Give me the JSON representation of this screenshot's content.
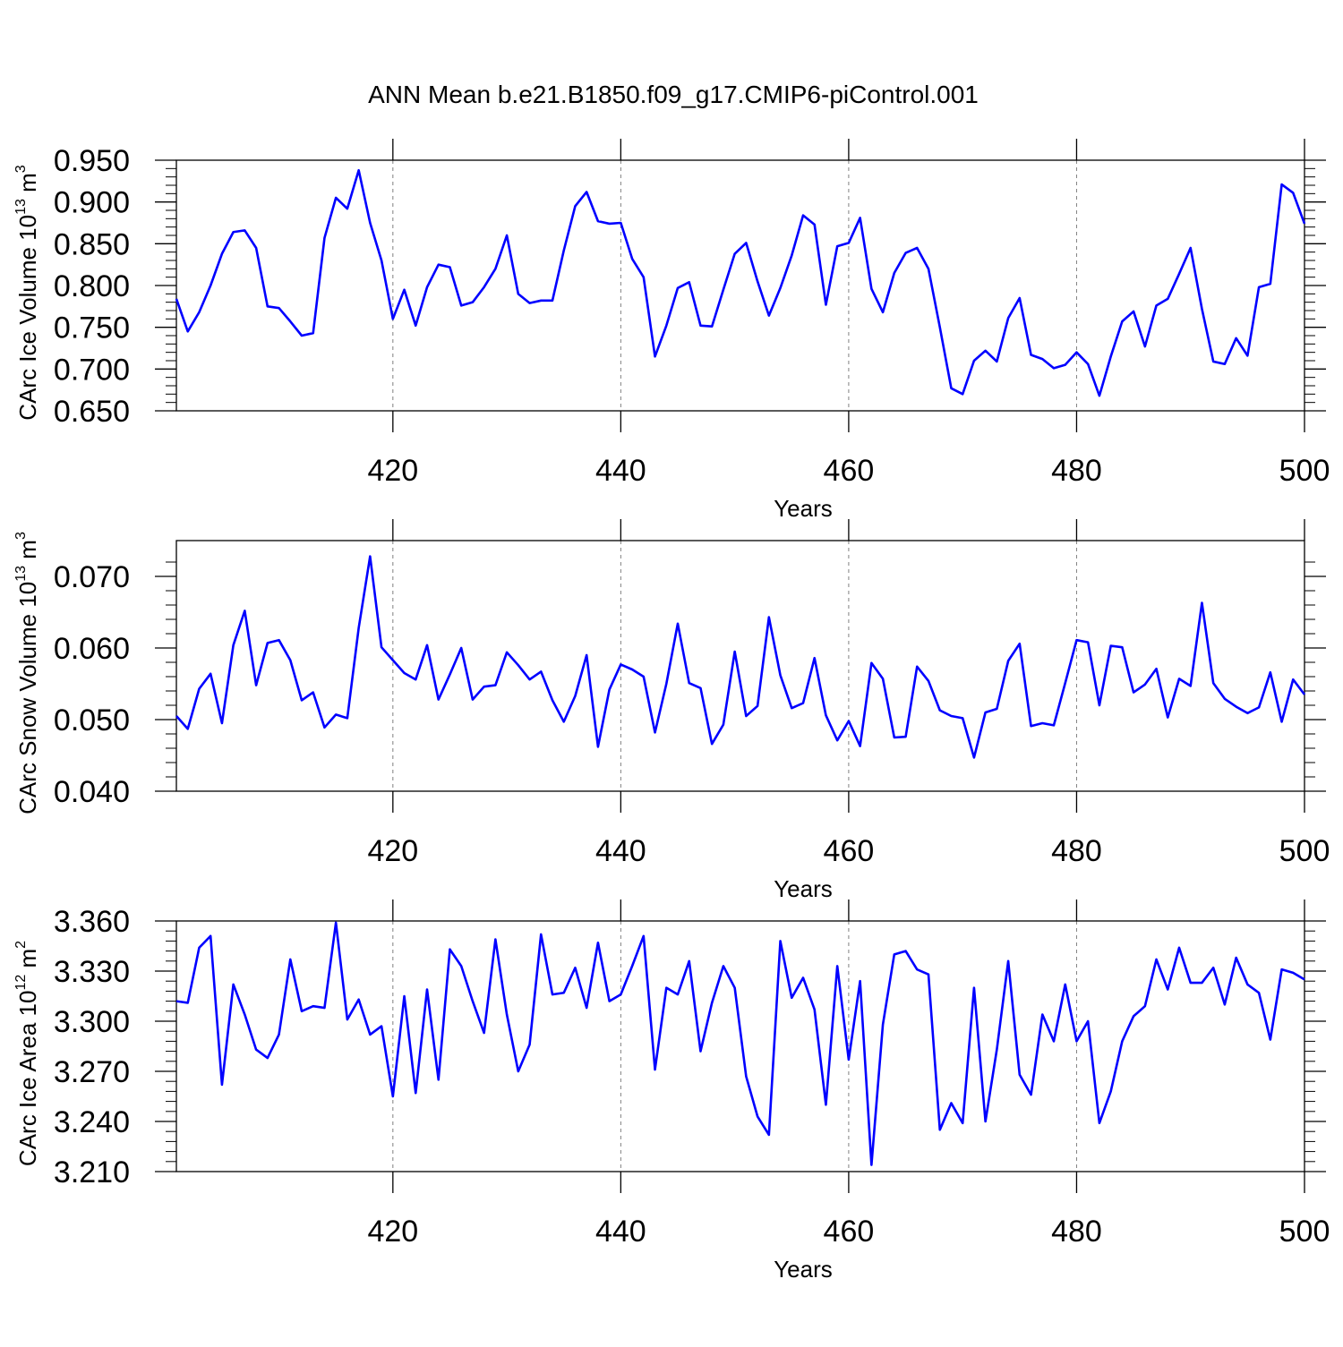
{
  "figure_title": "ANN Mean b.e21.B1850.f09_g17.CMIP6-piControl.001",
  "colors": {
    "line": "#0000ff",
    "axes": "#000000",
    "grid": "#808080"
  },
  "chart_data": [
    {
      "type": "line",
      "xlabel": "Years",
      "ylabel": {
        "main": "CArc Ice Volume 10",
        "exp": "13",
        "unit": " m",
        "unit_exp": "3"
      },
      "xlim": [
        401,
        500
      ],
      "ylim": [
        0.65,
        0.95
      ],
      "xticks": [
        420,
        440,
        460,
        480,
        500
      ],
      "yticks": [
        0.65,
        0.7,
        0.75,
        0.8,
        0.85,
        0.9,
        0.95
      ],
      "ytick_labels": [
        "0.650",
        "0.700",
        "0.750",
        "0.800",
        "0.850",
        "0.900",
        "0.950"
      ],
      "y_minor_step": 0.01,
      "grid": "x-dashed",
      "x_start": 401,
      "values": [
        0.784,
        0.745,
        0.768,
        0.8,
        0.838,
        0.864,
        0.866,
        0.845,
        0.775,
        0.773,
        0.757,
        0.74,
        0.743,
        0.857,
        0.905,
        0.892,
        0.938,
        0.875,
        0.83,
        0.76,
        0.795,
        0.752,
        0.798,
        0.825,
        0.822,
        0.776,
        0.78,
        0.798,
        0.82,
        0.86,
        0.79,
        0.779,
        0.782,
        0.782,
        0.842,
        0.895,
        0.912,
        0.877,
        0.874,
        0.875,
        0.832,
        0.81,
        0.715,
        0.752,
        0.797,
        0.804,
        0.752,
        0.751,
        0.795,
        0.838,
        0.851,
        0.805,
        0.764,
        0.797,
        0.836,
        0.884,
        0.873,
        0.777,
        0.847,
        0.851,
        0.881,
        0.796,
        0.768,
        0.815,
        0.839,
        0.845,
        0.82,
        0.75,
        0.677,
        0.67,
        0.71,
        0.722,
        0.709,
        0.761,
        0.785,
        0.717,
        0.712,
        0.701,
        0.705,
        0.72,
        0.706,
        0.668,
        0.715,
        0.757,
        0.769,
        0.727,
        0.776,
        0.784,
        0.814,
        0.845,
        0.772,
        0.709,
        0.706,
        0.737,
        0.716,
        0.798,
        0.802,
        0.921,
        0.911,
        0.874
      ]
    },
    {
      "type": "line",
      "xlabel": "Years",
      "ylabel": {
        "main": "CArc Snow Volume 10",
        "exp": "13",
        "unit": " m",
        "unit_exp": "3"
      },
      "xlim": [
        401,
        500
      ],
      "ylim": [
        0.04,
        0.075
      ],
      "xticks": [
        420,
        440,
        460,
        480,
        500
      ],
      "yticks": [
        0.04,
        0.05,
        0.06,
        0.07
      ],
      "ytick_labels": [
        "0.040",
        "0.050",
        "0.060",
        "0.070"
      ],
      "y_minor_step": 0.002,
      "grid": "x-dashed",
      "x_start": 401,
      "values": [
        0.0505,
        0.0487,
        0.0543,
        0.0564,
        0.0495,
        0.0604,
        0.0652,
        0.0548,
        0.0607,
        0.0611,
        0.0583,
        0.0527,
        0.0538,
        0.0489,
        0.0507,
        0.0502,
        0.0628,
        0.0728,
        0.0601,
        0.0583,
        0.0565,
        0.0556,
        0.0604,
        0.0528,
        0.0563,
        0.06,
        0.0528,
        0.0546,
        0.0548,
        0.0594,
        0.0576,
        0.0556,
        0.0567,
        0.0527,
        0.0497,
        0.0533,
        0.059,
        0.0462,
        0.0542,
        0.0577,
        0.057,
        0.056,
        0.0482,
        0.055,
        0.0634,
        0.0551,
        0.0544,
        0.0466,
        0.0493,
        0.0595,
        0.0505,
        0.0519,
        0.0643,
        0.0562,
        0.0516,
        0.0523,
        0.0586,
        0.0506,
        0.0471,
        0.0498,
        0.0463,
        0.0579,
        0.0557,
        0.0475,
        0.0476,
        0.0574,
        0.0554,
        0.0513,
        0.0505,
        0.0502,
        0.0447,
        0.051,
        0.0515,
        0.0582,
        0.0606,
        0.0491,
        0.0495,
        0.0492,
        0.0551,
        0.0611,
        0.0608,
        0.052,
        0.0603,
        0.0601,
        0.0538,
        0.0549,
        0.0571,
        0.0503,
        0.0557,
        0.0547,
        0.0663,
        0.0551,
        0.0529,
        0.0518,
        0.0509,
        0.0517,
        0.0566,
        0.0497,
        0.0556,
        0.0535
      ]
    },
    {
      "type": "line",
      "xlabel": "Years",
      "ylabel": {
        "main": "CArc Ice Area 10",
        "exp": "12",
        "unit": " m",
        "unit_exp": "2"
      },
      "xlim": [
        401,
        500
      ],
      "ylim": [
        3.21,
        3.36
      ],
      "xticks": [
        420,
        440,
        460,
        480,
        500
      ],
      "yticks": [
        3.21,
        3.24,
        3.27,
        3.3,
        3.33,
        3.36
      ],
      "ytick_labels": [
        "3.210",
        "3.240",
        "3.270",
        "3.300",
        "3.330",
        "3.360"
      ],
      "y_minor_step": 0.006,
      "grid": "x-dashed",
      "x_start": 401,
      "values": [
        3.312,
        3.311,
        3.344,
        3.351,
        3.262,
        3.322,
        3.304,
        3.283,
        3.278,
        3.292,
        3.337,
        3.306,
        3.309,
        3.308,
        3.359,
        3.301,
        3.313,
        3.292,
        3.297,
        3.255,
        3.315,
        3.257,
        3.319,
        3.265,
        3.343,
        3.333,
        3.312,
        3.293,
        3.349,
        3.304,
        3.27,
        3.286,
        3.352,
        3.316,
        3.317,
        3.332,
        3.308,
        3.347,
        3.312,
        3.316,
        3.333,
        3.351,
        3.271,
        3.32,
        3.316,
        3.336,
        3.282,
        3.311,
        3.333,
        3.32,
        3.267,
        3.243,
        3.232,
        3.348,
        3.314,
        3.326,
        3.307,
        3.25,
        3.333,
        3.277,
        3.324,
        3.214,
        3.298,
        3.34,
        3.342,
        3.331,
        3.328,
        3.235,
        3.251,
        3.239,
        3.32,
        3.24,
        3.283,
        3.336,
        3.268,
        3.256,
        3.304,
        3.288,
        3.322,
        3.288,
        3.3,
        3.239,
        3.258,
        3.288,
        3.303,
        3.309,
        3.337,
        3.319,
        3.344,
        3.323,
        3.323,
        3.332,
        3.31,
        3.338,
        3.322,
        3.317,
        3.289,
        3.331,
        3.329,
        3.325
      ]
    }
  ]
}
